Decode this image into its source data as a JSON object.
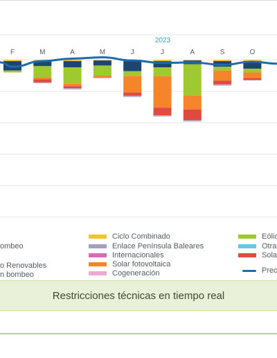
{
  "chart_data": {
    "type": "bar",
    "year_label": "2023",
    "categories": [
      "F",
      "M",
      "A",
      "M",
      "J",
      "J",
      "A",
      "S",
      "O"
    ],
    "ylim": [
      -260,
      40
    ],
    "grid": true,
    "series": [
      {
        "name": "Ciclo Combinado",
        "color": "#f2c230",
        "values": [
          -2,
          -2,
          -2,
          -1,
          -2,
          -2,
          -1,
          -2,
          -2
        ]
      },
      {
        "name": "",
        "color": "#1c4575",
        "values": [
          -15,
          -8,
          -10,
          -8,
          -16,
          -10,
          -6,
          -9,
          -12
        ]
      },
      {
        "name": "Eólica",
        "color": "#9fc931",
        "values": [
          -3,
          -18,
          -26,
          -16,
          -8,
          -14,
          -50,
          -6,
          -6
        ]
      },
      {
        "name": "Solar fotovoltaica",
        "color": "#f5842b",
        "values": [
          0,
          -3,
          -4,
          -2,
          -26,
          -50,
          -22,
          -16,
          -9
        ]
      },
      {
        "name": "Solar térmica",
        "color": "#e04a41",
        "values": [
          0,
          -5,
          -3,
          -1,
          -5,
          -12,
          -17,
          -6,
          -3
        ]
      },
      {
        "name": "Enlace Península Baleares",
        "color": "#b5a8c8",
        "values": [
          0,
          -1,
          -2,
          -1,
          -2,
          -2,
          -2,
          -2,
          -1
        ]
      }
    ],
    "line_series": {
      "name": "Precio",
      "color": "#1f6aab",
      "values": [
        -11,
        -2,
        2,
        4,
        -1,
        -5,
        -4,
        -8,
        -3
      ]
    }
  },
  "legend": {
    "col_left": [
      "ombeo",
      "o Renovables",
      "n bombeo"
    ],
    "col_mid": [
      "Ciclo Combinado",
      "Enlace Península Baleares",
      "Internacionales",
      "Solar fotovoltaica",
      "Cogeneración"
    ],
    "col_right": [
      "Eólic",
      "Otras",
      "Solar",
      "Prec"
    ],
    "colors": {
      "ciclo_combinado": "#f2c230",
      "enlace": "#a79fbf",
      "internacionales": "#d76ab3",
      "solar_fotovoltaica": "#f5842b",
      "cogeneracion": "#f2a7d0",
      "eolica": "#9fc931",
      "otras": "#6cc4e8",
      "solar_termica": "#e04a41",
      "precio": "#1f6aab"
    }
  },
  "banner": {
    "title": "Restricciones técnicas en tiempo real"
  }
}
